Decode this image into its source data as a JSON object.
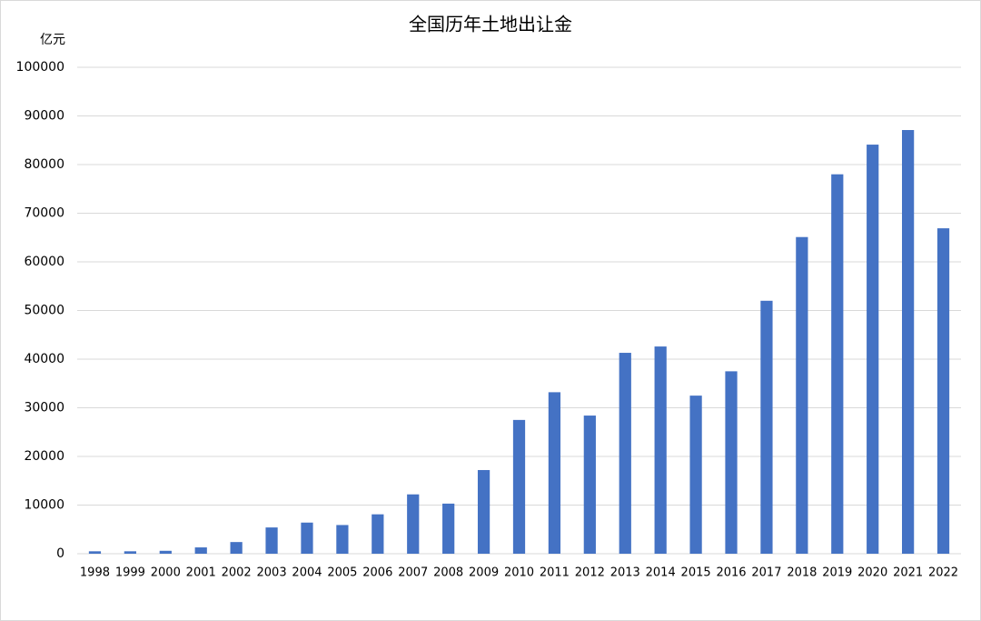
{
  "chart_data": {
    "type": "bar",
    "title": "全国历年土地出让金",
    "y_label": "亿元",
    "categories": [
      "1998",
      "1999",
      "2000",
      "2001",
      "2002",
      "2003",
      "2004",
      "2005",
      "2006",
      "2007",
      "2008",
      "2009",
      "2010",
      "2011",
      "2012",
      "2013",
      "2014",
      "2015",
      "2016",
      "2017",
      "2018",
      "2019",
      "2020",
      "2021",
      "2022"
    ],
    "values": [
      500,
      500,
      600,
      1300,
      2400,
      5400,
      6400,
      5900,
      8100,
      12200,
      10300,
      17200,
      27500,
      33200,
      28400,
      41300,
      42600,
      32500,
      37500,
      52000,
      65100,
      78000,
      84100,
      87100,
      66900
    ],
    "color": "#4472c4",
    "ylim": [
      0,
      100000
    ],
    "yticks": [
      0,
      10000,
      20000,
      30000,
      40000,
      50000,
      60000,
      70000,
      80000,
      90000,
      100000
    ],
    "grid": true
  }
}
